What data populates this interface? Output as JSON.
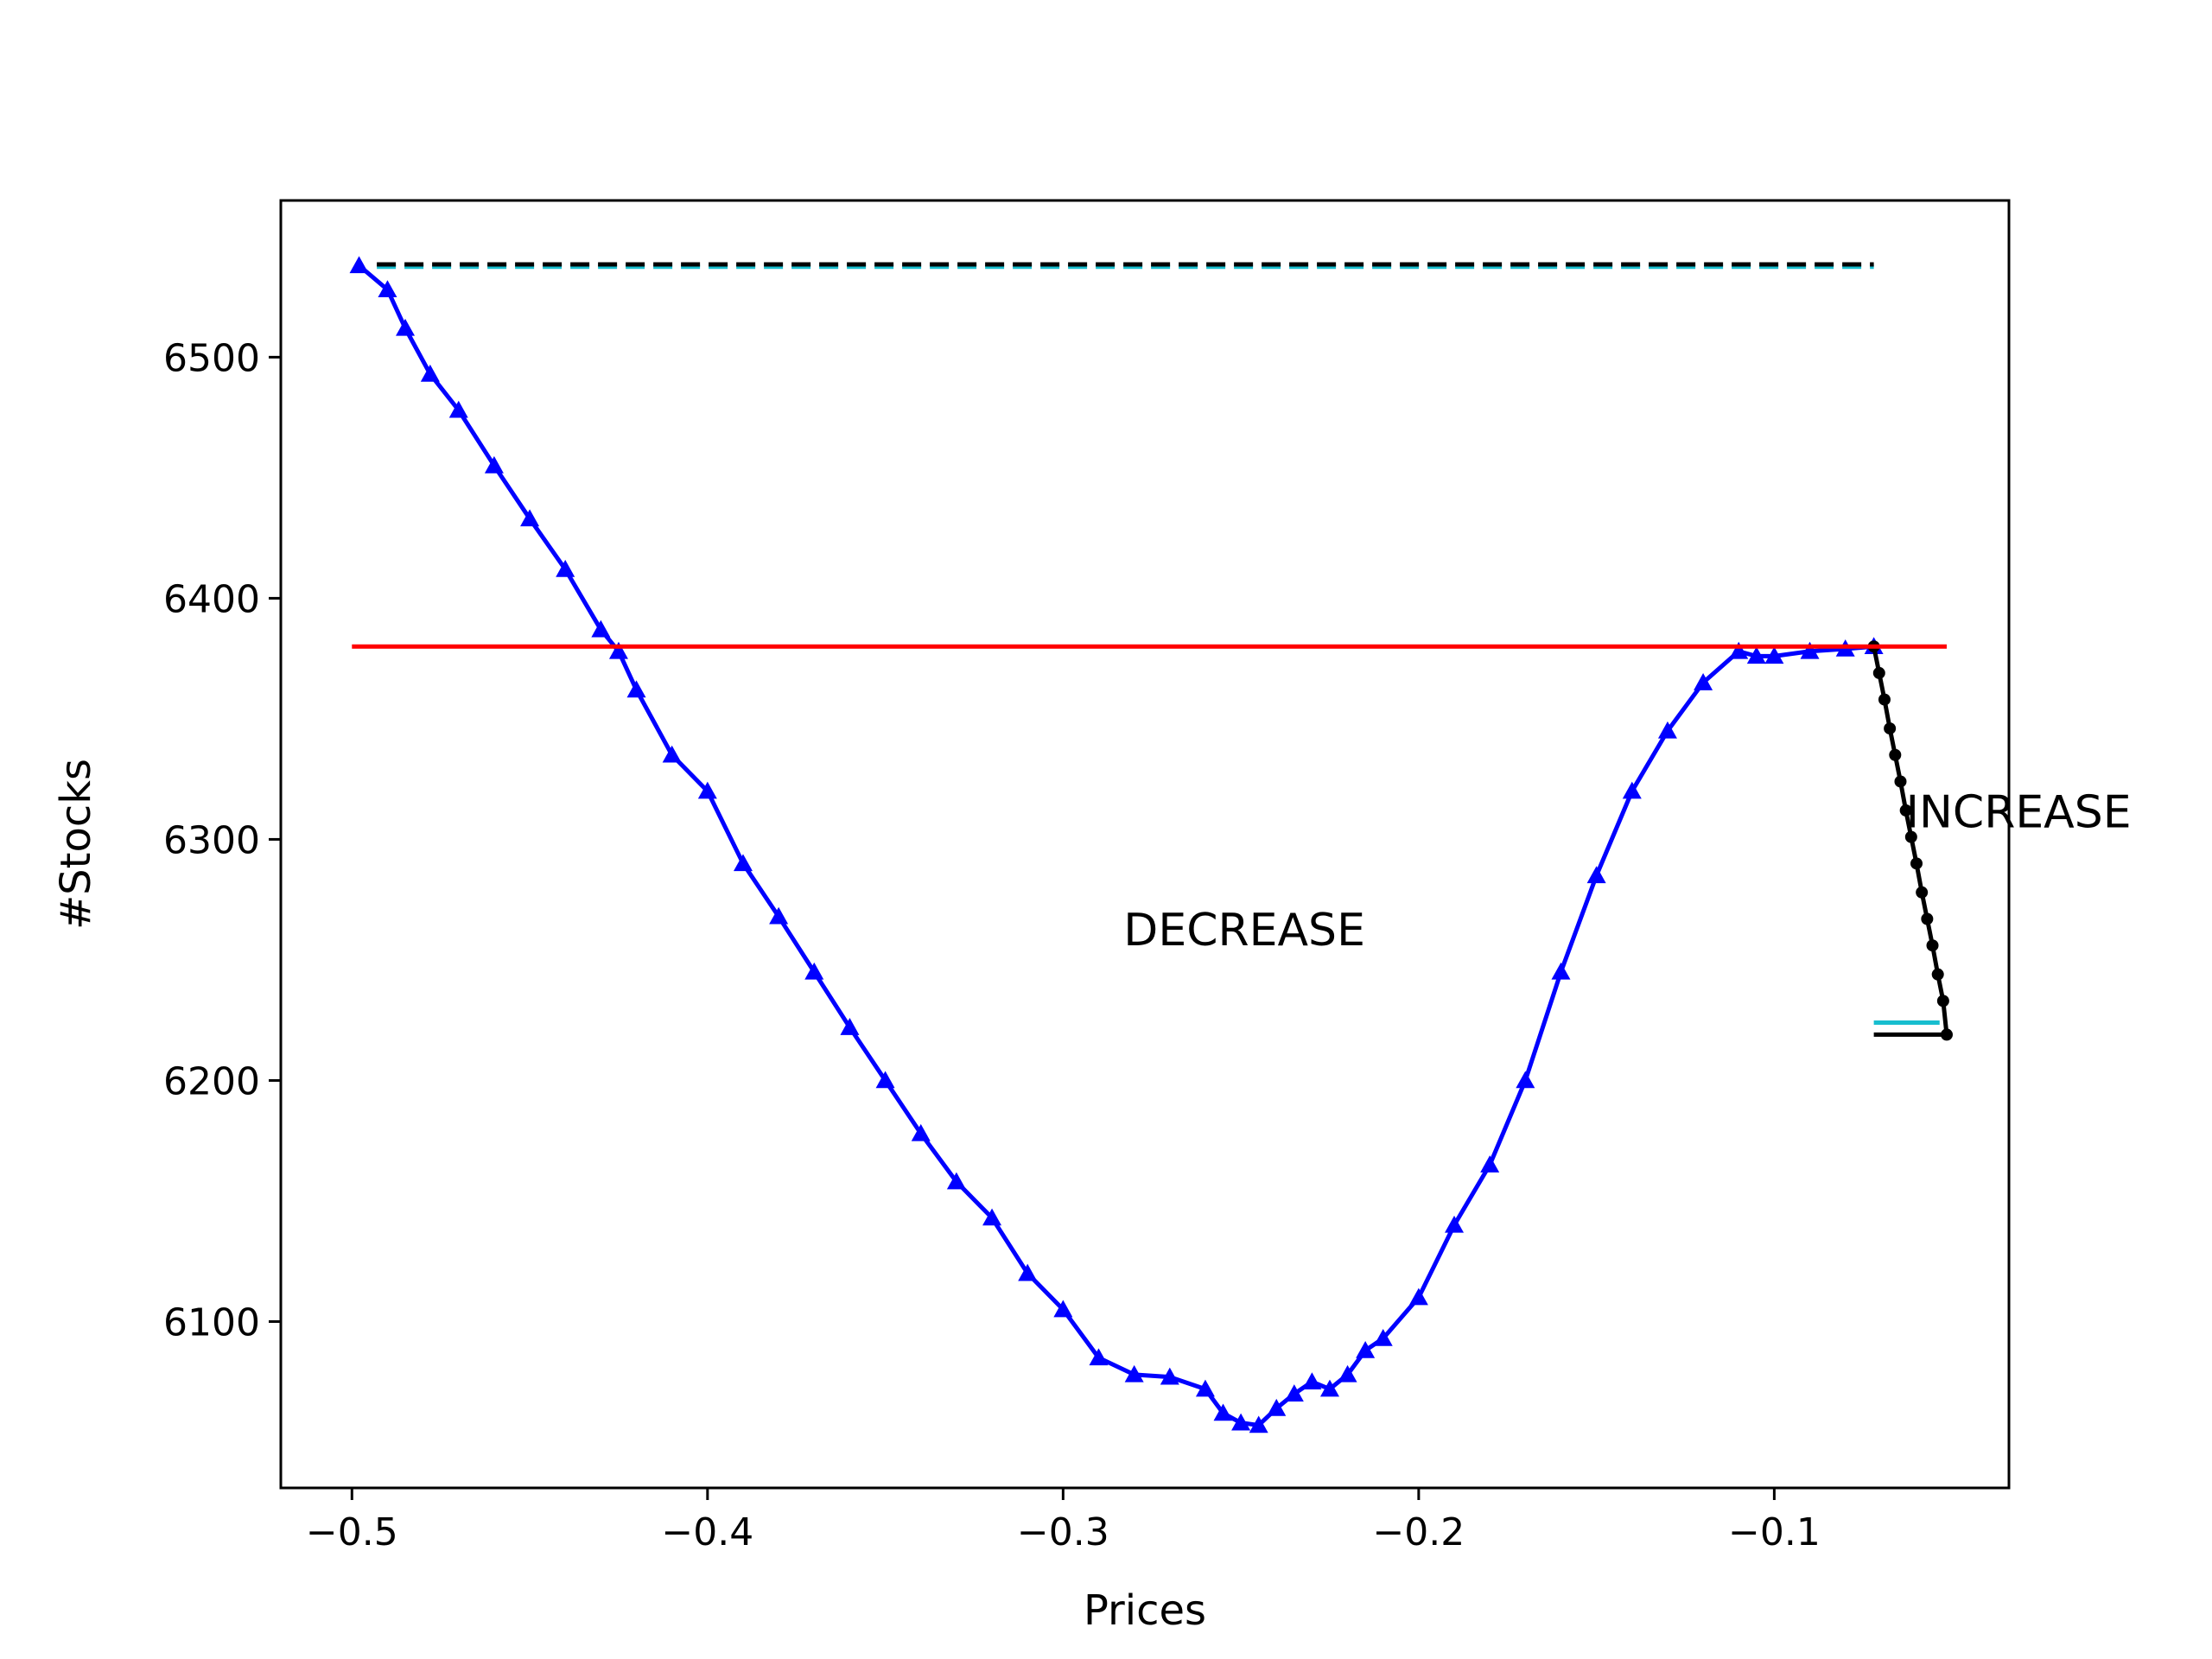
{
  "chart_data": {
    "type": "line",
    "title": "",
    "xlabel": "Prices",
    "ylabel": "#Stocks",
    "xlim": [
      -0.52,
      -0.034
    ],
    "ylim": [
      6031,
      6565
    ],
    "x_ticks": [
      -0.5,
      -0.4,
      -0.3,
      -0.2,
      -0.1
    ],
    "x_tick_labels": [
      "−0.5",
      "−0.4",
      "−0.3",
      "−0.2",
      "−0.1"
    ],
    "y_ticks": [
      6100,
      6200,
      6300,
      6400,
      6500
    ],
    "y_tick_labels": [
      "6100",
      "6200",
      "6300",
      "6400",
      "6500"
    ],
    "grid": false,
    "legend": "none",
    "annotations": [
      {
        "text": "DECREASE",
        "x": -0.283,
        "y": 6256
      },
      {
        "text": "INCREASE",
        "x": -0.063,
        "y": 6305
      }
    ],
    "series": [
      {
        "color": "#0000ff",
        "marker": "triangle",
        "style": "solid",
        "x": [
          -0.498,
          -0.49,
          -0.485,
          -0.478,
          -0.47,
          -0.46,
          -0.45,
          -0.44,
          -0.43,
          -0.425,
          -0.42,
          -0.41,
          -0.4,
          -0.39,
          -0.38,
          -0.37,
          -0.36,
          -0.35,
          -0.34,
          -0.33,
          -0.32,
          -0.31,
          -0.3,
          -0.29,
          -0.28,
          -0.27,
          -0.26,
          -0.255,
          -0.25,
          -0.245,
          -0.24,
          -0.235,
          -0.23,
          -0.225,
          -0.22,
          -0.215,
          -0.21,
          -0.2,
          -0.19,
          -0.18,
          -0.17,
          -0.16,
          -0.15,
          -0.14,
          -0.13,
          -0.12,
          -0.11,
          -0.105,
          -0.1,
          -0.09,
          -0.08,
          -0.072
        ],
        "y": [
          6538,
          6528,
          6512,
          6493,
          6478,
          6455,
          6433,
          6412,
          6387,
          6378,
          6362,
          6335,
          6320,
          6290,
          6268,
          6245,
          6222,
          6200,
          6178,
          6158,
          6143,
          6120,
          6105,
          6085,
          6078,
          6077,
          6072,
          6062,
          6058,
          6057,
          6064,
          6070,
          6075,
          6072,
          6078,
          6088,
          6093,
          6110,
          6140,
          6165,
          6200,
          6245,
          6285,
          6320,
          6345,
          6365,
          6378,
          6376,
          6376,
          6378,
          6379,
          6380
        ]
      },
      {
        "color": "#000000",
        "marker": "dot",
        "style": "solid",
        "x": [
          -0.072,
          -0.0705,
          -0.069,
          -0.0675,
          -0.066,
          -0.0645,
          -0.063,
          -0.0615,
          -0.06,
          -0.0585,
          -0.057,
          -0.0555,
          -0.054,
          -0.0525,
          -0.0515
        ],
        "y": [
          6380,
          6369,
          6358,
          6346,
          6335,
          6324,
          6312,
          6301,
          6290,
          6278,
          6267,
          6256,
          6244,
          6233,
          6219
        ]
      },
      {
        "color": "#ff0000",
        "style": "solid",
        "x": [
          -0.5,
          -0.0515
        ],
        "y": [
          6380,
          6380
        ]
      },
      {
        "color": "#17becf",
        "style": "dashed",
        "x": [
          -0.493,
          -0.072
        ],
        "y": [
          6537.5,
          6537.5
        ]
      },
      {
        "color": "#000000",
        "style": "dashed",
        "x": [
          -0.493,
          -0.072
        ],
        "y": [
          6538.5,
          6538.5
        ]
      },
      {
        "color": "#17becf",
        "style": "solid",
        "x": [
          -0.072,
          -0.0535
        ],
        "y": [
          6224,
          6224
        ]
      },
      {
        "color": "#000000",
        "style": "solid",
        "x": [
          -0.072,
          -0.0515
        ],
        "y": [
          6219,
          6219
        ]
      }
    ]
  }
}
